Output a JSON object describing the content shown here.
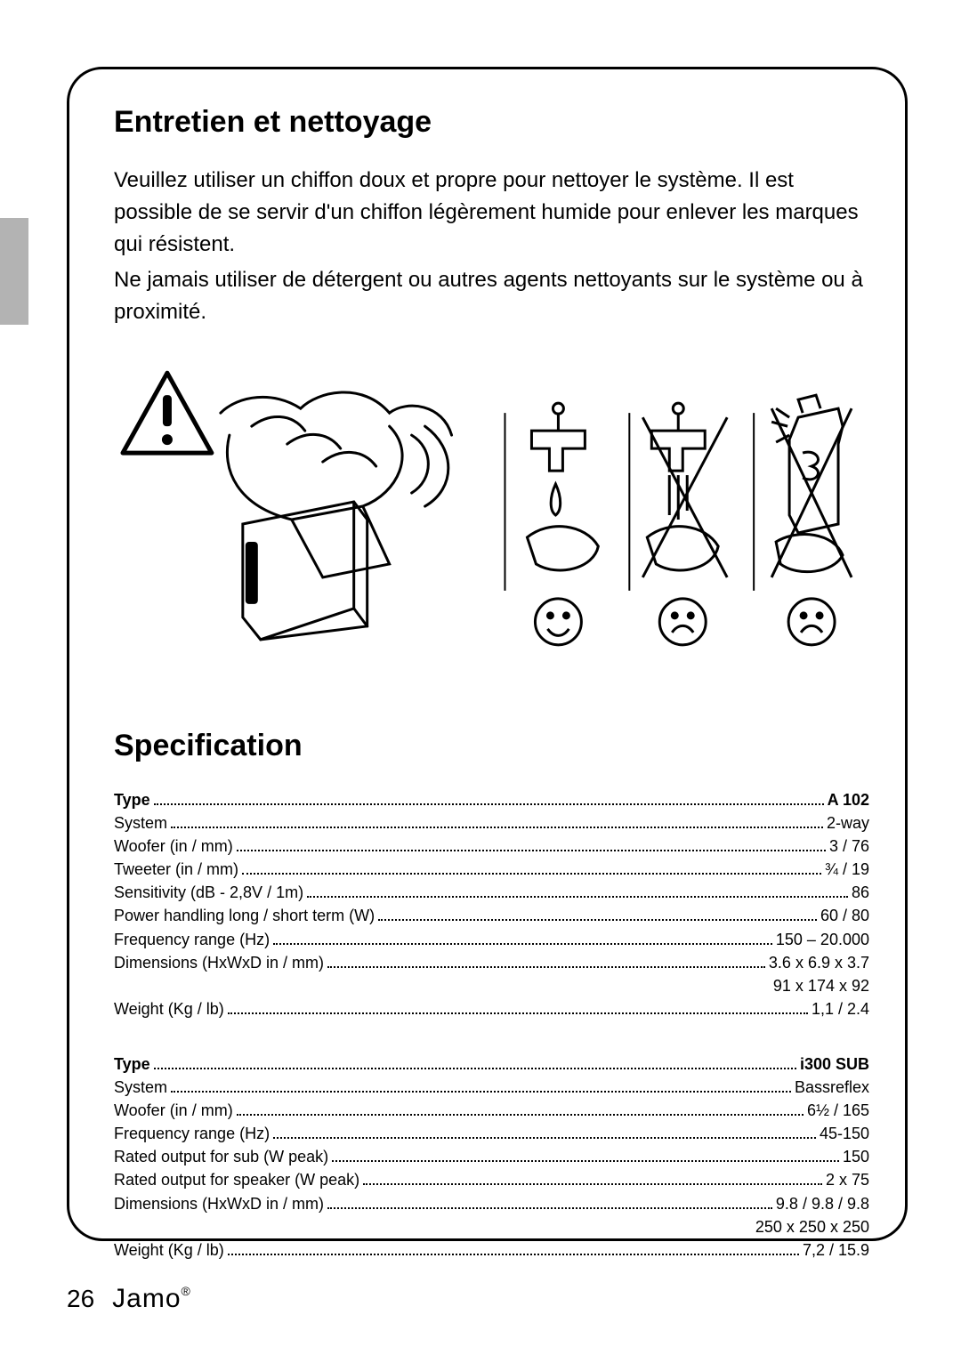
{
  "page_number": "26",
  "brand": "Jamo",
  "sections": {
    "maintenance": {
      "title": "Entretien et nettoyage",
      "para1": "Veuillez utiliser un chiffon doux et propre pour nettoyer le système. Il est possible de se servir d'un chiffon légèrement humide pour enlever les marques qui résistent.",
      "para2": "Ne jamais utiliser de détergent ou autres agents nettoyants sur le système ou à proximité."
    },
    "specification": {
      "title": "Specification",
      "groups": [
        {
          "rows": [
            {
              "label": "Type",
              "value": "A 102",
              "bold": true
            },
            {
              "label": "System",
              "value": "2-way"
            },
            {
              "label": "Woofer (in / mm)",
              "value": "3 / 76"
            },
            {
              "label": "Tweeter (in / mm)",
              "value": "¾ / 19"
            },
            {
              "label": "Sensitivity (dB - 2,8V / 1m)",
              "value": "86"
            },
            {
              "label": "Power handling long / short term (W)",
              "value": "60 / 80"
            },
            {
              "label": "Frequency range (Hz)",
              "value": "150 – 20.000"
            },
            {
              "label": "Dimensions (HxWxD in / mm)",
              "value": "3.6 x 6.9 x 3.7"
            },
            {
              "label": "",
              "value": "91 x 174 x 92",
              "right_only": true
            },
            {
              "label": "Weight (Kg / lb)",
              "value": "1,1 / 2.4"
            }
          ]
        },
        {
          "rows": [
            {
              "label": "Type",
              "value": "i300 SUB",
              "bold": true
            },
            {
              "label": "System",
              "value": "Bassreflex"
            },
            {
              "label": "Woofer (in / mm)",
              "value": "6½ / 165"
            },
            {
              "label": "Frequency range (Hz)",
              "value": "45-150"
            },
            {
              "label": "Rated output for sub (W peak)",
              "value": "150"
            },
            {
              "label": "Rated output for speaker (W peak)",
              "value": "2 x 75"
            },
            {
              "label": "Dimensions (HxWxD in / mm)",
              "value": "9.8 / 9.8 / 9.8"
            },
            {
              "label": "",
              "value": "250 x 250 x 250",
              "right_only": true
            },
            {
              "label": "Weight (Kg / lb)",
              "value": "7,2 / 15.9"
            }
          ]
        }
      ]
    }
  },
  "colors": {
    "text": "#000000",
    "background": "#ffffff",
    "side_tab": "#b3b3b3",
    "border": "#000000"
  }
}
